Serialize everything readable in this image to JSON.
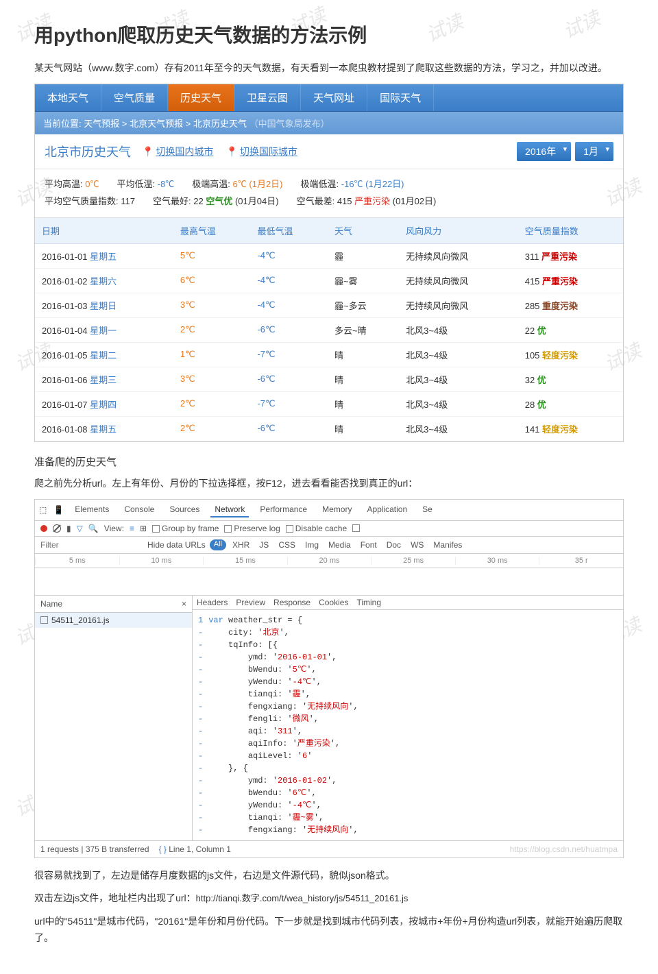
{
  "title": "用python爬取历史天气数据的方法示例",
  "intro": "某天气网站（www.数字.com）存有2011年至今的天气数据，有天看到一本爬虫教材提到了爬取这些数据的方法，学习之，并加以改进。",
  "nav": {
    "tabs": [
      "本地天气",
      "空气质量",
      "历史天气",
      "卫星云图",
      "天气网址",
      "国际天气"
    ],
    "active_index": 2
  },
  "breadcrumb": {
    "label": "当前位置:",
    "items": [
      "天气预报",
      "北京天气预报",
      "北京历史天气"
    ],
    "suffix": "（中国气象局发布）"
  },
  "city": {
    "name": "北京市历史天气",
    "switch_domestic": "切换国内城市",
    "switch_intl": "切换国际城市",
    "year": "2016年",
    "month": "1月"
  },
  "stats": {
    "avg_high_label": "平均高温:",
    "avg_high": "0℃",
    "avg_low_label": "平均低温:",
    "avg_low": "-8℃",
    "ext_high_label": "极端高温:",
    "ext_high": "6℃ (1月2日)",
    "ext_low_label": "极端低温:",
    "ext_low": "-16℃ (1月22日)",
    "aqi_avg_label": "平均空气质量指数:",
    "aqi_avg": "117",
    "aqi_best_label": "空气最好:",
    "aqi_best_val": "22",
    "aqi_best_txt": "空气优",
    "aqi_best_date": "(01月04日)",
    "aqi_worst_label": "空气最差:",
    "aqi_worst_val": "415",
    "aqi_worst_txt": "严重污染",
    "aqi_worst_date": "(01月02日)"
  },
  "table": {
    "headers": [
      "日期",
      "最高气温",
      "最低气温",
      "天气",
      "风向风力",
      "空气质量指数"
    ],
    "rows": [
      {
        "date": "2016-01-01",
        "day": "星期五",
        "high": "5℃",
        "low": "-4℃",
        "weather": "霾",
        "wind": "无持续风向微风",
        "aqi": "311",
        "aqi_txt": "严重污染",
        "aqi_class": "redbold"
      },
      {
        "date": "2016-01-02",
        "day": "星期六",
        "high": "6℃",
        "low": "-4℃",
        "weather": "霾~雾",
        "wind": "无持续风向微风",
        "aqi": "415",
        "aqi_txt": "严重污染",
        "aqi_class": "redbold"
      },
      {
        "date": "2016-01-03",
        "day": "星期日",
        "high": "3℃",
        "low": "-4℃",
        "weather": "霾~多云",
        "wind": "无持续风向微风",
        "aqi": "285",
        "aqi_txt": "重度污染",
        "aqi_class": "brown"
      },
      {
        "date": "2016-01-04",
        "day": "星期一",
        "high": "2℃",
        "low": "-6℃",
        "weather": "多云~晴",
        "wind": "北风3~4级",
        "aqi": "22",
        "aqi_txt": "优",
        "aqi_class": "green"
      },
      {
        "date": "2016-01-05",
        "day": "星期二",
        "high": "1℃",
        "low": "-7℃",
        "weather": "晴",
        "wind": "北风3~4级",
        "aqi": "105",
        "aqi_txt": "轻度污染",
        "aqi_class": "yellow"
      },
      {
        "date": "2016-01-06",
        "day": "星期三",
        "high": "3℃",
        "low": "-6℃",
        "weather": "晴",
        "wind": "北风3~4级",
        "aqi": "32",
        "aqi_txt": "优",
        "aqi_class": "green"
      },
      {
        "date": "2016-01-07",
        "day": "星期四",
        "high": "2℃",
        "low": "-7℃",
        "weather": "晴",
        "wind": "北风3~4级",
        "aqi": "28",
        "aqi_txt": "优",
        "aqi_class": "green"
      },
      {
        "date": "2016-01-08",
        "day": "星期五",
        "high": "2℃",
        "low": "-6℃",
        "weather": "晴",
        "wind": "北风3~4级",
        "aqi": "141",
        "aqi_txt": "轻度污染",
        "aqi_class": "yellow"
      }
    ]
  },
  "section1": "准备爬的历史天气",
  "para1": "爬之前先分析url。左上有年份、月份的下拉选择框，按F12，进去看看能否找到真正的url：",
  "devtools": {
    "main_tabs": [
      "Elements",
      "Console",
      "Sources",
      "Network",
      "Performance",
      "Memory",
      "Application",
      "Se"
    ],
    "active_main": 3,
    "toolbar": {
      "view": "View:",
      "group": "Group by frame",
      "preserve": "Preserve log",
      "disable": "Disable cache"
    },
    "filter_label": "Filter",
    "hide_urls": "Hide data URLs",
    "filter_types": [
      "All",
      "XHR",
      "JS",
      "CSS",
      "Img",
      "Media",
      "Font",
      "Doc",
      "WS",
      "Manifes"
    ],
    "timeline": [
      "5 ms",
      "10 ms",
      "15 ms",
      "20 ms",
      "25 ms",
      "30 ms",
      "35 r"
    ],
    "name_header": "Name",
    "file": "54511_20161.js",
    "detail_tabs": [
      "Headers",
      "Preview",
      "Response",
      "Cookies",
      "Timing"
    ],
    "status_requests": "1 requests | 375 B transferred",
    "status_line": "Line 1, Column 1",
    "code_lines": [
      "var weather_str = {",
      "    city: '北京',",
      "    tqInfo: [{",
      "        ymd: '2016-01-01',",
      "        bWendu: '5℃',",
      "        yWendu: '-4℃',",
      "        tianqi: '霾',",
      "        fengxiang: '无持续风向',",
      "        fengli: '微风',",
      "        aqi: '311',",
      "        aqiInfo: '严重污染',",
      "        aqiLevel: '6'",
      "    }, {",
      "        ymd: '2016-01-02',",
      "        bWendu: '6℃',",
      "        yWendu: '-4℃',",
      "        tianqi: '霾~雾',",
      "        fengxiang: '无持续风向',"
    ]
  },
  "para2": "很容易就找到了，左边是储存月度数据的js文件，右边是文件源代码，貌似json格式。",
  "para3_prefix": "双击左边js文件，地址栏内出现了url：",
  "para3_url": "http://tianqi.数字.com/t/wea_history/js/54511_20161.js",
  "para4": "url中的\"54511\"是城市代码，\"20161\"是年份和月份代码。下一步就是找到城市代码列表，按城市+年份+月份构造url列表，就能开始遍历爬取了。",
  "watermark": "试读",
  "wm_url": "https://blog.csdn.net/huatmpa"
}
